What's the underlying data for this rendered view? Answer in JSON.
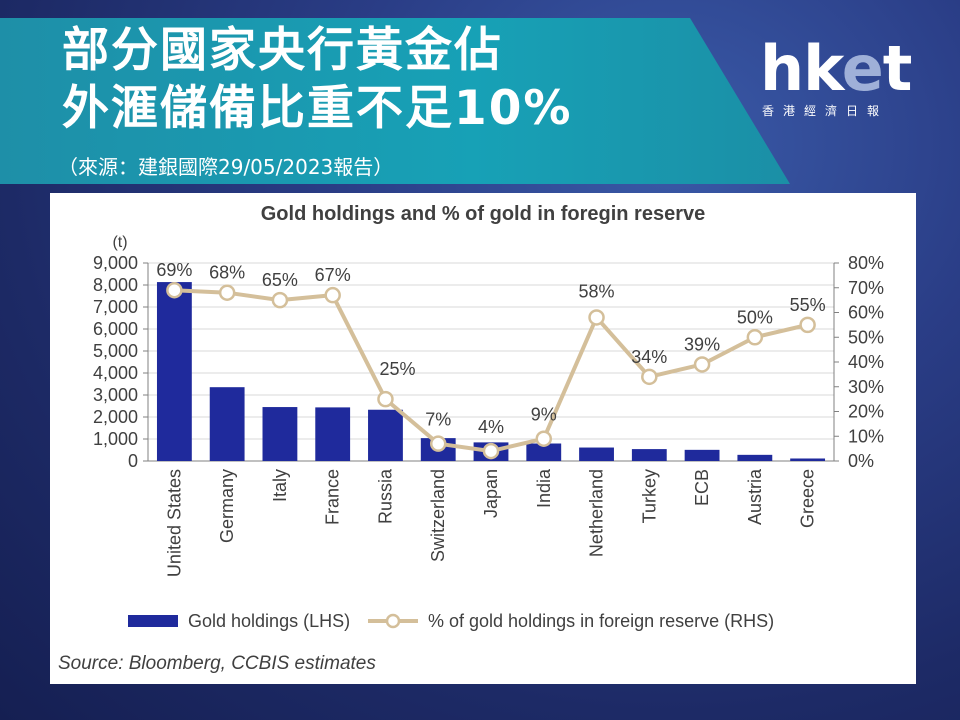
{
  "header": {
    "title_line1": "部分國家央行黃金佔",
    "title_line2": "外滙儲備比重不足10%",
    "subtitle": "（來源：建銀國際29/05/2023報告）"
  },
  "logo": {
    "main_h": "hk",
    "main_e": "e",
    "main_t": "t",
    "sub": "香港經濟日報"
  },
  "colors": {
    "bar": "#1f2a9c",
    "line": "#d4bf9a",
    "banner": "#17a1b6",
    "text": "#404040"
  },
  "chart_data": {
    "type": "bar+line",
    "title": "Gold holdings and % of gold in foregin reserve",
    "ylabel_left": "(t)",
    "categories": [
      "United States",
      "Germany",
      "Italy",
      "France",
      "Russia",
      "Switzerland",
      "Japan",
      "India",
      "Netherland",
      "Turkey",
      "ECB",
      "Austria",
      "Greece"
    ],
    "ylim_left": [
      0,
      9000
    ],
    "yticks_left": [
      "0",
      "1,000",
      "2,000",
      "3,000",
      "4,000",
      "5,000",
      "6,000",
      "7,000",
      "8,000",
      "9,000"
    ],
    "ylim_right": [
      0,
      80
    ],
    "yticks_right": [
      "0%",
      "10%",
      "20%",
      "30%",
      "40%",
      "50%",
      "60%",
      "70%",
      "80%"
    ],
    "series": [
      {
        "name": "Gold holdings (LHS)",
        "type": "bar",
        "axis": "left",
        "values": [
          8133,
          3355,
          2452,
          2437,
          2330,
          1040,
          846,
          795,
          612,
          541,
          507,
          280,
          114
        ]
      },
      {
        "name": "% of gold holdings in foreign reserve (RHS)",
        "type": "line",
        "axis": "right",
        "values": [
          69,
          68,
          65,
          67,
          25,
          7,
          4,
          9,
          58,
          34,
          39,
          50,
          55
        ],
        "labels": [
          "69%",
          "68%",
          "65%",
          "67%",
          "25%",
          "7%",
          "4%",
          "9%",
          "58%",
          "34%",
          "39%",
          "50%",
          "55%"
        ]
      }
    ],
    "legend": "bottom",
    "source": "Source: Bloomberg, CCBIS estimates"
  }
}
